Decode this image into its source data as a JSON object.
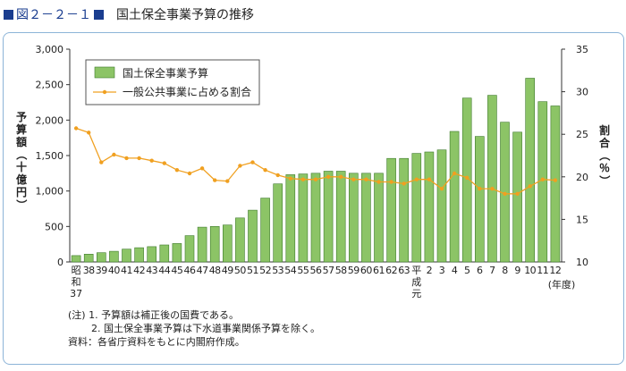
{
  "figure": {
    "label": "図２－２－１",
    "title": "国土保全事業予算の推移"
  },
  "chart_data": {
    "type": "bar+line",
    "categories": [
      "昭和37",
      "38",
      "39",
      "40",
      "41",
      "42",
      "43",
      "44",
      "45",
      "46",
      "47",
      "48",
      "49",
      "50",
      "51",
      "52",
      "53",
      "54",
      "55",
      "56",
      "57",
      "58",
      "59",
      "60",
      "61",
      "62",
      "63",
      "平成元",
      "2",
      "3",
      "4",
      "5",
      "6",
      "7",
      "8",
      "9",
      "10",
      "11",
      "12"
    ],
    "series": [
      {
        "name": "国土保全事業予算",
        "type": "bar",
        "axis": "left",
        "color": "#8cc466",
        "values": [
          90,
          110,
          130,
          150,
          180,
          200,
          215,
          240,
          260,
          370,
          490,
          500,
          520,
          620,
          730,
          900,
          1100,
          1230,
          1240,
          1250,
          1280,
          1280,
          1250,
          1250,
          1250,
          1460,
          1460,
          1530,
          1550,
          1580,
          1840,
          2310,
          1770,
          2350,
          1970,
          1830,
          2590,
          2260,
          2200
        ]
      },
      {
        "name": "一般公共事業に占める割合",
        "type": "line",
        "axis": "right",
        "color": "#f0a020",
        "values": [
          25.7,
          25.2,
          21.7,
          22.6,
          22.2,
          22.2,
          21.9,
          21.6,
          20.8,
          20.4,
          21.0,
          19.6,
          19.5,
          21.3,
          21.7,
          20.8,
          20.2,
          19.8,
          19.7,
          19.7,
          20.0,
          20.0,
          19.7,
          19.7,
          19.4,
          19.4,
          19.2,
          19.7,
          19.7,
          18.6,
          20.4,
          19.9,
          18.6,
          18.6,
          18.0,
          18.0,
          18.9,
          19.7,
          19.6
        ]
      }
    ],
    "y_left": {
      "label": "予算額（十億円）",
      "range": [
        0,
        3000
      ],
      "ticks": [
        "0",
        "500",
        "1,000",
        "1,500",
        "2,000",
        "2,500",
        "3,000"
      ]
    },
    "y_right": {
      "label": "割合（％）",
      "range": [
        10,
        35
      ],
      "ticks": [
        "10",
        "15",
        "20",
        "25",
        "30",
        "35"
      ]
    },
    "x_unit": "(年度)",
    "legend_position": "top-left",
    "grid": false
  },
  "notes": {
    "note1": "(注)  1. 予算額は補正後の国費である。",
    "note2": "2. 国土保全事業予算は下水道事業関係予算を除く。",
    "source": "資料：各省庁資料をもとに内閣府作成。"
  },
  "colors": {
    "title_blue": "#1a3d8f",
    "panel_border": "#8cb4d8",
    "bar_fill": "#8cc466",
    "bar_stroke": "#3d7a2a",
    "line": "#f0a020"
  }
}
